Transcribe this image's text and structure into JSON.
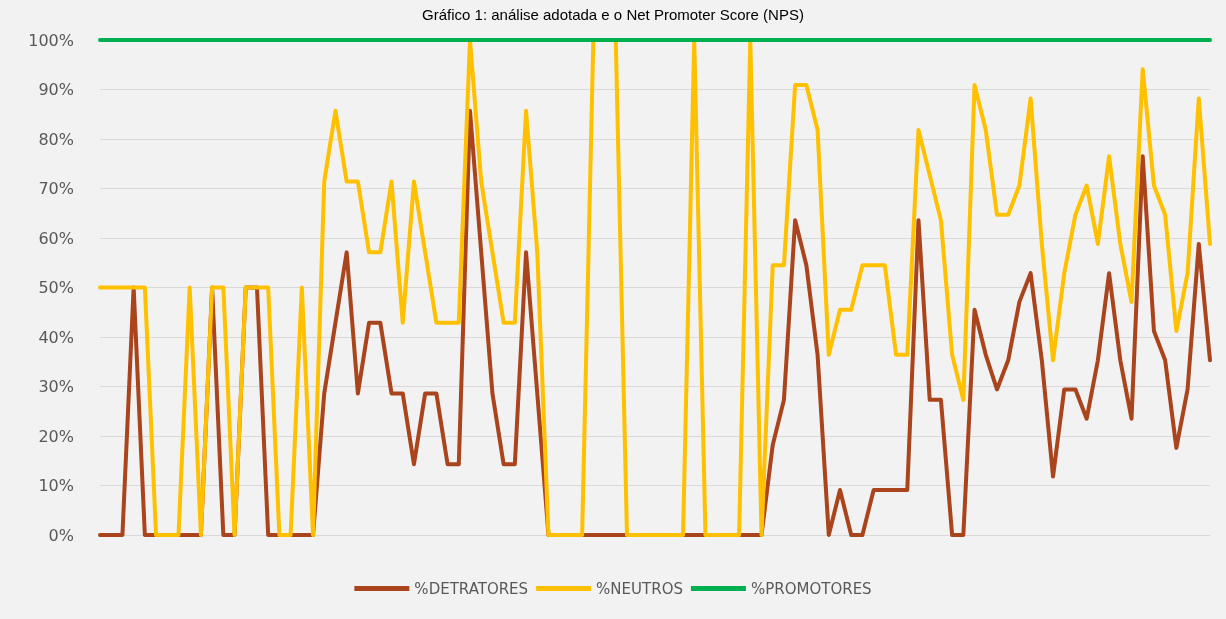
{
  "chart_data": {
    "type": "line",
    "title": "Gráfico 1: análise adotada e o Net Promoter Score (NPS)",
    "categories": [
      null,
      null,
      null,
      null,
      null,
      null,
      null,
      null,
      null,
      null,
      null,
      null,
      null,
      null,
      null,
      null,
      null,
      null,
      null,
      null,
      null,
      null,
      null,
      null,
      null,
      null,
      null,
      null,
      null,
      null,
      null,
      null,
      null,
      null,
      null,
      null,
      null,
      null,
      null,
      null,
      null,
      null,
      null,
      null,
      null,
      null,
      null,
      null,
      null,
      null,
      null,
      null,
      null,
      null,
      null,
      null,
      null,
      null,
      null,
      null,
      null,
      null,
      null,
      null,
      null,
      null,
      null,
      null,
      null,
      null,
      null,
      null,
      null,
      null,
      null,
      null,
      null,
      null,
      null,
      null,
      null,
      null,
      null,
      null,
      null,
      null,
      null,
      null,
      null,
      null,
      null,
      null,
      null,
      null,
      null,
      null,
      null,
      null,
      null,
      null
    ],
    "series": [
      {
        "name": "%DETRATORES",
        "color": "#a9441c",
        "values": [
          0,
          0,
          0,
          50,
          0,
          0,
          0,
          0,
          0,
          0,
          50,
          0,
          0,
          50,
          50,
          0,
          0,
          0,
          0,
          0,
          28.6,
          42.9,
          57.1,
          28.6,
          42.9,
          42.9,
          28.6,
          28.6,
          14.3,
          28.6,
          28.6,
          14.3,
          14.3,
          85.7,
          57.1,
          28.6,
          14.3,
          14.3,
          57.1,
          28.6,
          0,
          0,
          0,
          0,
          0,
          0,
          0,
          0,
          0,
          0,
          0,
          0,
          0,
          0,
          0,
          0,
          0,
          0,
          0,
          0,
          18.2,
          27.3,
          63.6,
          54.5,
          36.4,
          0,
          9.1,
          0,
          0,
          9.1,
          9.1,
          9.1,
          9.1,
          63.6,
          27.3,
          27.3,
          0,
          0,
          45.5,
          36.4,
          29.4,
          35.3,
          47.1,
          52.9,
          35.3,
          11.8,
          29.4,
          29.4,
          23.5,
          35.3,
          52.9,
          35.3,
          23.5,
          76.5,
          41.2,
          35.3,
          17.6,
          29.4,
          58.8,
          35.3
        ]
      },
      {
        "name": "%NEUTROS",
        "color": "#ffc000",
        "values": [
          50,
          50,
          50,
          50,
          50,
          0,
          0,
          0,
          50,
          0,
          50,
          50,
          0,
          50,
          50,
          50,
          0,
          0,
          50,
          0,
          71.4,
          85.7,
          71.4,
          71.4,
          57.1,
          57.1,
          71.4,
          42.9,
          71.4,
          57.1,
          42.9,
          42.9,
          42.9,
          100,
          71.4,
          57.1,
          42.9,
          42.9,
          85.7,
          57.1,
          0,
          0,
          0,
          0,
          100,
          null,
          100,
          0,
          0,
          0,
          0,
          0,
          0,
          100,
          0,
          0,
          0,
          0,
          100,
          0,
          54.5,
          54.5,
          90.9,
          90.9,
          81.8,
          36.4,
          45.5,
          45.5,
          54.5,
          54.5,
          54.5,
          36.4,
          36.4,
          81.8,
          72.7,
          63.6,
          36.4,
          27.3,
          90.9,
          81.8,
          64.7,
          64.7,
          70.6,
          88.2,
          58.8,
          35.3,
          52.9,
          64.7,
          70.6,
          58.8,
          76.5,
          58.8,
          47.1,
          94.1,
          70.6,
          64.7,
          41.2,
          52.9,
          88.2,
          58.8
        ]
      },
      {
        "name": "%PROMOTORES",
        "color": "#00b050",
        "values": [
          100,
          100,
          100,
          100,
          100,
          100,
          100,
          100,
          100,
          100,
          100,
          100,
          100,
          100,
          100,
          100,
          100,
          100,
          100,
          100,
          100,
          100,
          100,
          100,
          100,
          100,
          100,
          100,
          100,
          100,
          100,
          100,
          100,
          100,
          100,
          100,
          100,
          100,
          100,
          100,
          100,
          100,
          100,
          100,
          100,
          100,
          100,
          100,
          100,
          100,
          100,
          100,
          100,
          100,
          100,
          100,
          100,
          100,
          100,
          100,
          100,
          100,
          100,
          100,
          100,
          100,
          100,
          100,
          100,
          100,
          100,
          100,
          100,
          100,
          100,
          100,
          100,
          100,
          100,
          100,
          100,
          100,
          100,
          100,
          100,
          100,
          100,
          100,
          100,
          100,
          100,
          100,
          100,
          100,
          100,
          100,
          100,
          100,
          100,
          100
        ]
      }
    ],
    "ylim": [
      0,
      100
    ],
    "yticks": [
      {
        "value": 0,
        "label": "0%"
      },
      {
        "value": 10,
        "label": "10%"
      },
      {
        "value": 20,
        "label": "20%"
      },
      {
        "value": 30,
        "label": "30%"
      },
      {
        "value": 40,
        "label": "40%"
      },
      {
        "value": 50,
        "label": "50%"
      },
      {
        "value": 60,
        "label": "60%"
      },
      {
        "value": 70,
        "label": "70%"
      },
      {
        "value": 80,
        "label": "80%"
      },
      {
        "value": 90,
        "label": "90%"
      },
      {
        "value": 100,
        "label": "100%"
      }
    ],
    "grid": "y",
    "legend": "bottom",
    "marker": "none",
    "line_style": "solid"
  }
}
